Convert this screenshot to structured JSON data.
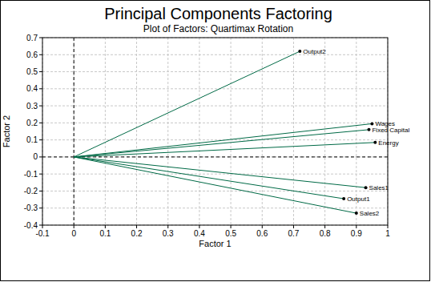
{
  "chart_data": {
    "type": "scatter",
    "title": "Principal Components Factoring",
    "subtitle": "Plot of Factors: Quartimax Rotation",
    "x_label": "Factor 1",
    "y_label": "Factor 2",
    "labels": [
      "Output2",
      "Wages",
      "Fixed Capital",
      "Energy",
      "Sales1",
      "Output1",
      "Sales2"
    ],
    "x": [
      0.72,
      0.95,
      0.94,
      0.96,
      0.93,
      0.86,
      0.9
    ],
    "values": [
      0.62,
      0.195,
      0.16,
      0.085,
      -0.18,
      -0.245,
      -0.33
    ],
    "color": "#006a46",
    "marker": "circle",
    "xlim": [
      -0.1,
      1
    ],
    "ylim": [
      -0.4,
      0.7
    ],
    "xticks": [
      -0.1,
      0,
      0.1,
      0.2,
      0.3,
      0.4,
      0.5,
      0.6,
      0.7,
      0.8,
      0.9,
      1
    ],
    "yticks": [
      -0.4,
      -0.3,
      -0.2,
      -0.1,
      0,
      0.1,
      0.2,
      0.3,
      0.4,
      0.5,
      0.6,
      0.7
    ],
    "grid": true
  }
}
